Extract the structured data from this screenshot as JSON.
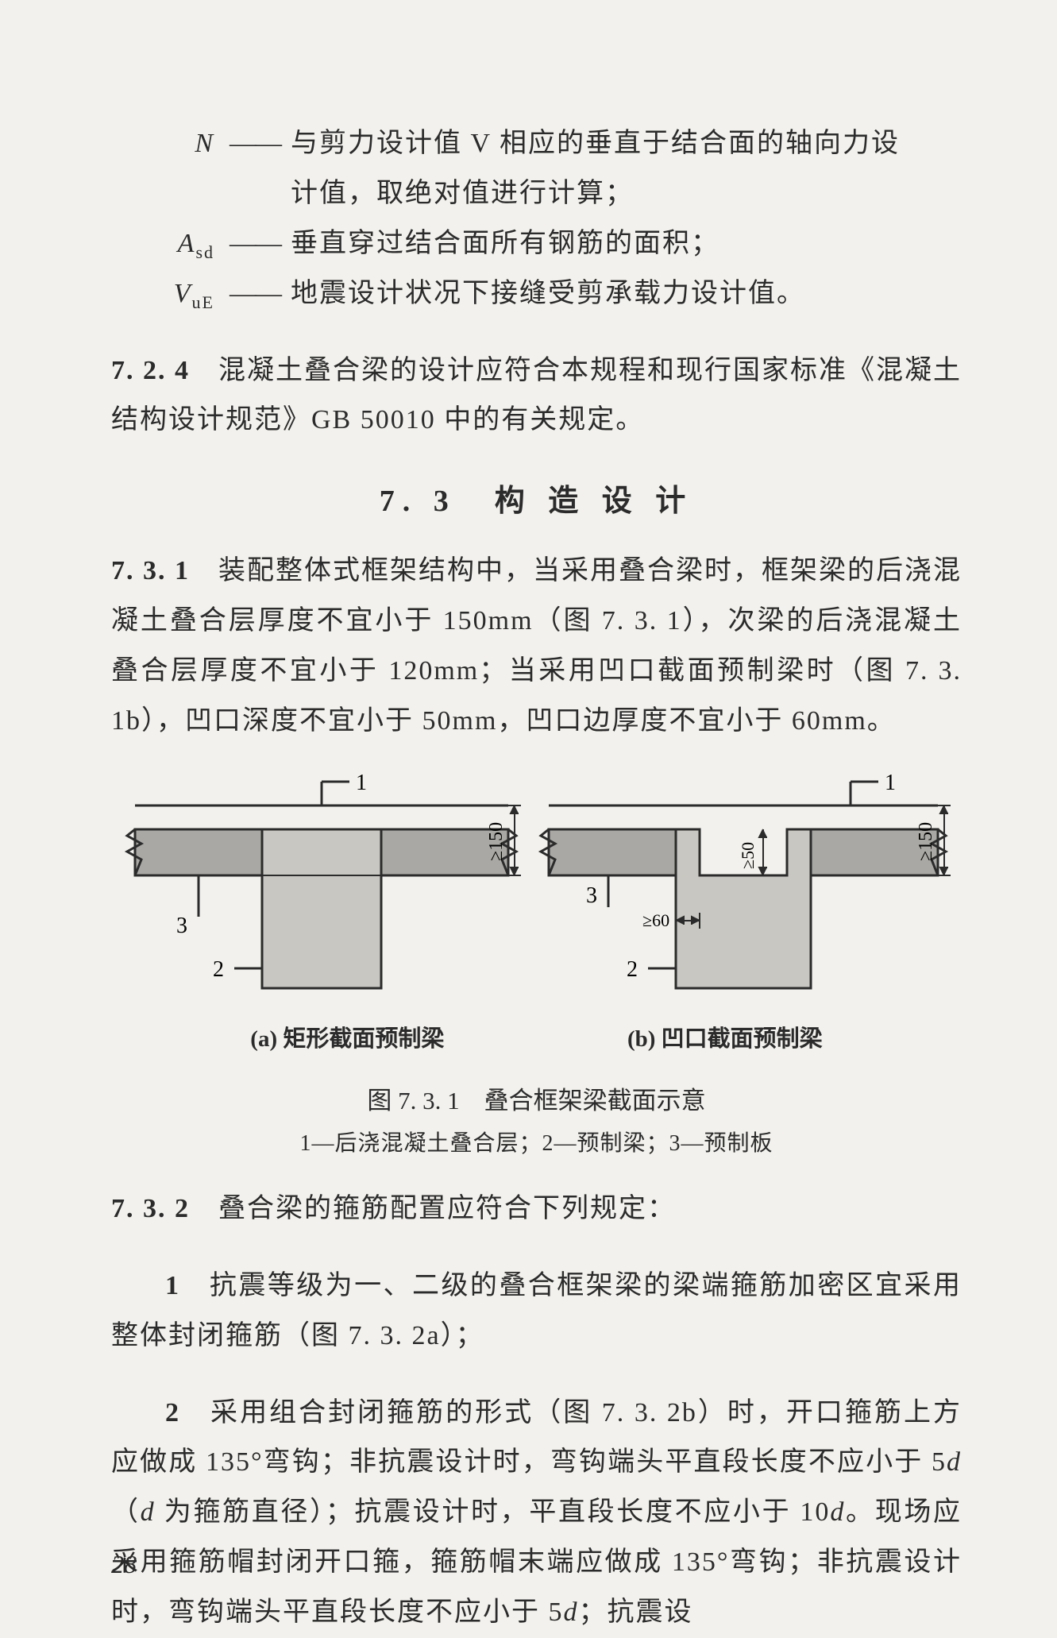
{
  "definitions": [
    {
      "symbol_html": "N",
      "text1": "与剪力设计值 V 相应的垂直于结合面的轴向力设",
      "text2": "计值，取绝对值进行计算；"
    },
    {
      "symbol_html": "A<span class='sub'>sd</span>",
      "text1": "垂直穿过结合面所有钢筋的面积；",
      "text2": ""
    },
    {
      "symbol_html": "V<span class='sub'>uE</span>",
      "text1": "地震设计状况下接缝受剪承载力设计值。",
      "text2": ""
    }
  ],
  "clause_724": {
    "head": "7. 2. 4",
    "body": "　混凝土叠合梁的设计应符合本规程和现行国家标准《混凝土结构设计规范》GB 50010 中的有关规定。"
  },
  "section_heading": "7. 3　构 造 设 计",
  "clause_731": {
    "head": "7. 3. 1",
    "body": "　装配整体式框架结构中，当采用叠合梁时，框架梁的后浇混凝土叠合层厚度不宜小于 150mm（图 7. 3. 1），次梁的后浇混凝土叠合层厚度不宜小于 120mm；当采用凹口截面预制梁时（图 7. 3. 1b），凹口深度不宜小于 50mm，凹口边厚度不宜小于 60mm。"
  },
  "figure": {
    "sub_a": "(a) 矩形截面预制梁",
    "sub_b": "(b) 凹口截面预制梁",
    "main_caption": "图 7. 3. 1　叠合框架梁截面示意",
    "legend": "1—后浇混凝土叠合层；2—预制梁；3—预制板",
    "colors": {
      "slab": "#a9a8a4",
      "beam": "#c8c7c2",
      "line": "#2b2b2b",
      "hatch": "#6d6d6a"
    },
    "dims": {
      "h150": "≥150",
      "h50": "≥50",
      "w60": "≥60"
    },
    "labels": {
      "one": "1",
      "two": "2",
      "three": "3"
    }
  },
  "clause_732": {
    "head": "7. 3. 2",
    "lead": "　叠合梁的箍筋配置应符合下列规定：",
    "items": [
      {
        "num": "1",
        "text": "抗震等级为一、二级的叠合框架梁的梁端箍筋加密区宜采用整体封闭箍筋（图 7. 3. 2a）；"
      },
      {
        "num": "2",
        "text": "采用组合封闭箍筋的形式（图 7. 3. 2b）时，开口箍筋上方应做成 135°弯钩；非抗震设计时，弯钩端头平直段长度不应小于 5d（d 为箍筋直径）；抗震设计时，平直段长度不应小于 10d。现场应采用箍筋帽封闭开口箍，箍筋帽末端应做成 135°弯钩；非抗震设计时，弯钩端头平直段长度不应小于 5d；抗震设"
      }
    ]
  },
  "page_number": "28"
}
